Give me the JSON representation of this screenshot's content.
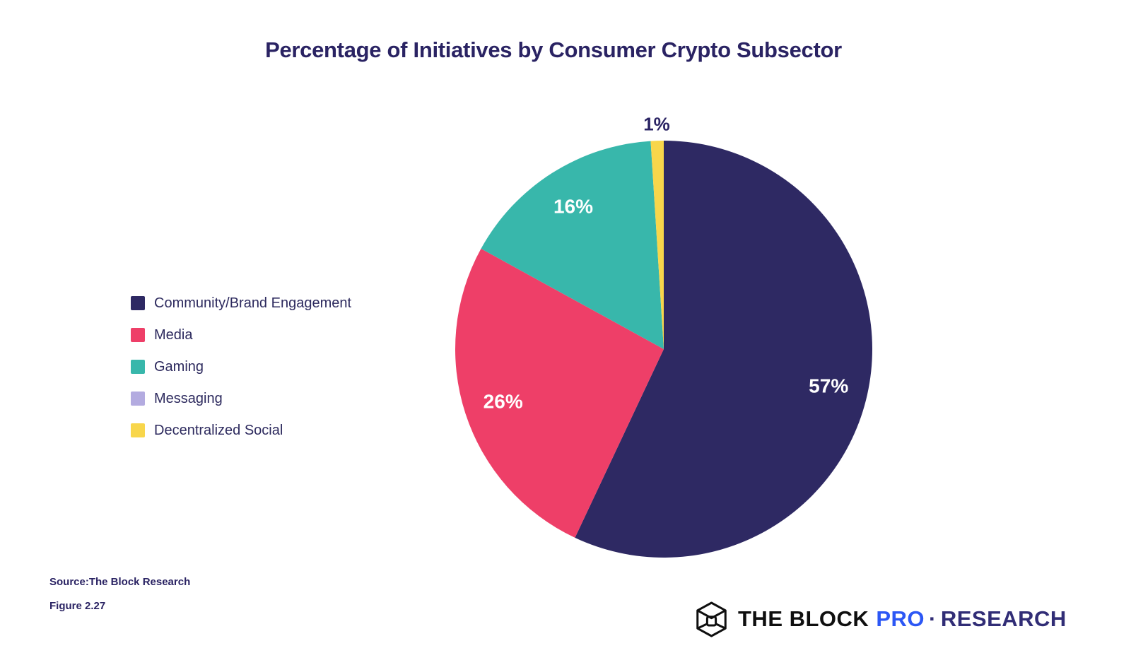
{
  "title": {
    "text": "Percentage of Initiatives by Consumer Crypto Subsector",
    "color": "#2a2363"
  },
  "chart_data": {
    "type": "pie",
    "title": "Percentage of Initiatives by Consumer Crypto Subsector",
    "categories": [
      "Community/Brand Engagement",
      "Media",
      "Gaming",
      "Messaging",
      "Decentralized Social"
    ],
    "values": [
      57,
      26,
      16,
      0,
      1
    ],
    "unit": "%",
    "slice_labels": [
      "57%",
      "26%",
      "16%",
      "",
      "1%"
    ],
    "colors": [
      "#2e2963",
      "#ee3f68",
      "#38b7ab",
      "#b3abe0",
      "#f8d64b"
    ],
    "start_angle": "12-oclock",
    "direction": "clockwise",
    "legend_position": "left",
    "label_inside_color": "#ffffff",
    "label_outside_color": "#2a2363"
  },
  "footer": {
    "source": "Source:The Block Research",
    "figure": "Figure 2.27"
  },
  "logo": {
    "icon": "block-cube-icon",
    "brand": "THE BLOCK",
    "pro": "PRO",
    "separator": "·",
    "suffix": "RESEARCH",
    "brand_color": "#0f0f0f",
    "pro_color": "#2c57f5",
    "suffix_color": "#312d76"
  }
}
